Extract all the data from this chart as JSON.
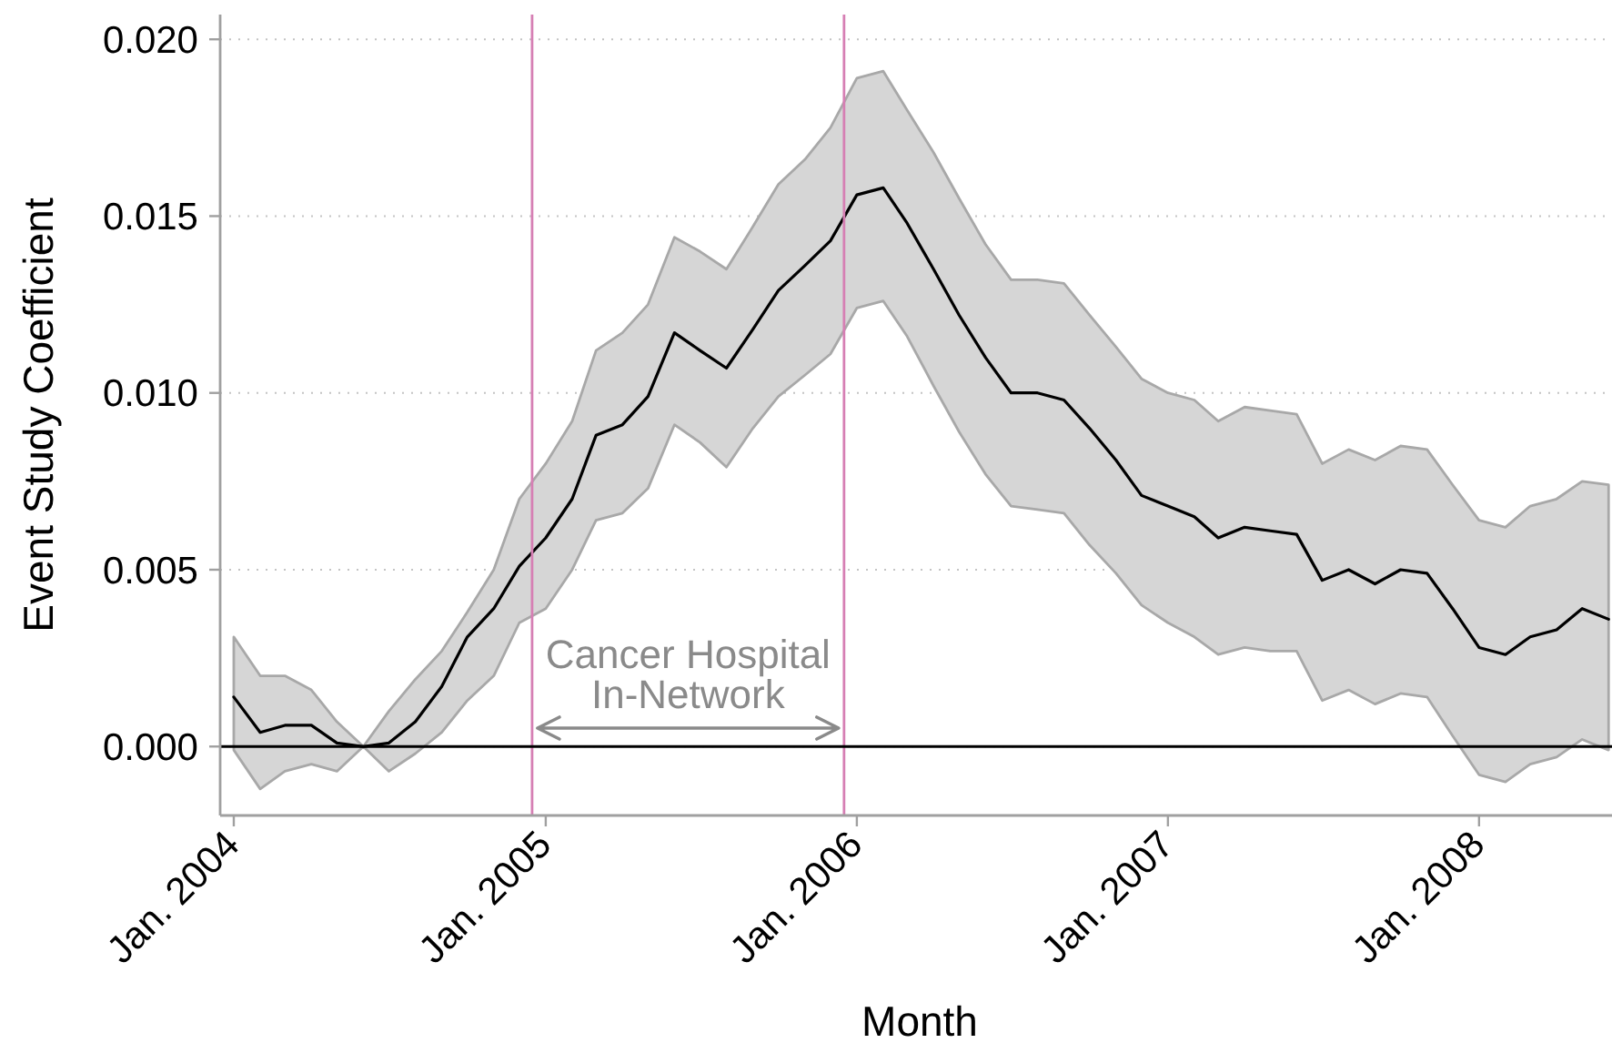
{
  "chart_data": {
    "type": "line",
    "xlabel": "Month",
    "ylabel": "Event Study Coefficient",
    "x": [
      "2004-01",
      "2004-02",
      "2004-03",
      "2004-04",
      "2004-05",
      "2004-06",
      "2004-07",
      "2004-08",
      "2004-09",
      "2004-10",
      "2004-11",
      "2004-12",
      "2005-01",
      "2005-02",
      "2005-03",
      "2005-04",
      "2005-05",
      "2005-06",
      "2005-07",
      "2005-08",
      "2005-09",
      "2005-10",
      "2005-11",
      "2005-12",
      "2006-01",
      "2006-02",
      "2006-03",
      "2006-04",
      "2006-05",
      "2006-06",
      "2006-07",
      "2006-08",
      "2006-09",
      "2006-10",
      "2006-11",
      "2006-12",
      "2007-01",
      "2007-02",
      "2007-03",
      "2007-04",
      "2007-05",
      "2007-06",
      "2007-07",
      "2007-08",
      "2007-09",
      "2007-10",
      "2007-11",
      "2007-12",
      "2008-01",
      "2008-02",
      "2008-03",
      "2008-04",
      "2008-05",
      "2008-06"
    ],
    "series": [
      {
        "color": "#000000",
        "values": [
          0.0014,
          0.0004,
          0.0006,
          0.0006,
          0.0001,
          0.0,
          0.0001,
          0.0007,
          0.0017,
          0.0031,
          0.0039,
          0.0051,
          0.0059,
          0.007,
          0.0088,
          0.0091,
          0.0099,
          0.0117,
          0.0112,
          0.0107,
          0.0118,
          0.0129,
          0.0136,
          0.0143,
          0.0156,
          0.0158,
          0.0148,
          0.0135,
          0.0122,
          0.011,
          0.01,
          0.01,
          0.0098,
          0.009,
          0.0081,
          0.0071,
          0.0068,
          0.0065,
          0.0059,
          0.0062,
          0.0061,
          0.006,
          0.0047,
          0.005,
          0.0046,
          0.005,
          0.0049,
          0.0039,
          0.0028,
          0.0026,
          0.0031,
          0.0033,
          0.0039,
          0.0036
        ],
        "lower": [
          -0.0001,
          -0.0012,
          -0.0007,
          -0.0005,
          -0.0007,
          0.0,
          -0.0007,
          -0.0002,
          0.0004,
          0.0013,
          0.002,
          0.0035,
          0.0039,
          0.005,
          0.0064,
          0.0066,
          0.0073,
          0.0091,
          0.0086,
          0.0079,
          0.009,
          0.0099,
          0.0105,
          0.0111,
          0.0124,
          0.0126,
          0.0116,
          0.0102,
          0.0089,
          0.0077,
          0.0068,
          0.0067,
          0.0066,
          0.0057,
          0.0049,
          0.004,
          0.0035,
          0.0031,
          0.0026,
          0.0028,
          0.0027,
          0.0027,
          0.0013,
          0.0016,
          0.0012,
          0.0015,
          0.0014,
          0.0003,
          -0.0008,
          -0.001,
          -0.0005,
          -0.0003,
          0.0002,
          -0.0001
        ],
        "upper": [
          0.0031,
          0.002,
          0.002,
          0.0016,
          0.0007,
          0.0,
          0.001,
          0.0019,
          0.0027,
          0.0038,
          0.005,
          0.007,
          0.008,
          0.0092,
          0.0112,
          0.0117,
          0.0125,
          0.0144,
          0.014,
          0.0135,
          0.0147,
          0.0159,
          0.0166,
          0.0175,
          0.0189,
          0.0191,
          0.018,
          0.0168,
          0.0155,
          0.0142,
          0.0132,
          0.0132,
          0.0131,
          0.0122,
          0.0113,
          0.0104,
          0.01,
          0.0098,
          0.0092,
          0.0096,
          0.0095,
          0.0094,
          0.008,
          0.0084,
          0.0081,
          0.0085,
          0.0084,
          0.0074,
          0.0064,
          0.0062,
          0.0068,
          0.007,
          0.0075,
          0.0074
        ]
      }
    ],
    "xlim": [
      "2003-12-16",
      "2008-06-05"
    ],
    "xticks": [
      {
        "value": "2004-01",
        "label": "Jan. 2004"
      },
      {
        "value": "2005-01",
        "label": "Jan. 2005"
      },
      {
        "value": "2006-01",
        "label": "Jan. 2006"
      },
      {
        "value": "2007-01",
        "label": "Jan. 2007"
      },
      {
        "value": "2008-01",
        "label": "Jan. 2008"
      }
    ],
    "ylim": [
      -0.00195,
      0.0207
    ],
    "yticks": [
      {
        "value": 0,
        "label": "0.000"
      },
      {
        "value": 0.005,
        "label": "0.005"
      },
      {
        "value": 0.01,
        "label": "0.010"
      },
      {
        "value": 0.015,
        "label": "0.015"
      },
      {
        "value": 0.02,
        "label": "0.020"
      }
    ],
    "grid": "y",
    "ref_lines": [
      {
        "axis": "x",
        "value": "2004-12-16",
        "color": "#d67fb4"
      },
      {
        "axis": "x",
        "value": "2005-12-17",
        "color": "#d67fb4"
      },
      {
        "axis": "y",
        "value": 0,
        "color": "#000000"
      }
    ],
    "annotations": [
      "Cancer Hospital\nIn-Network"
    ]
  }
}
